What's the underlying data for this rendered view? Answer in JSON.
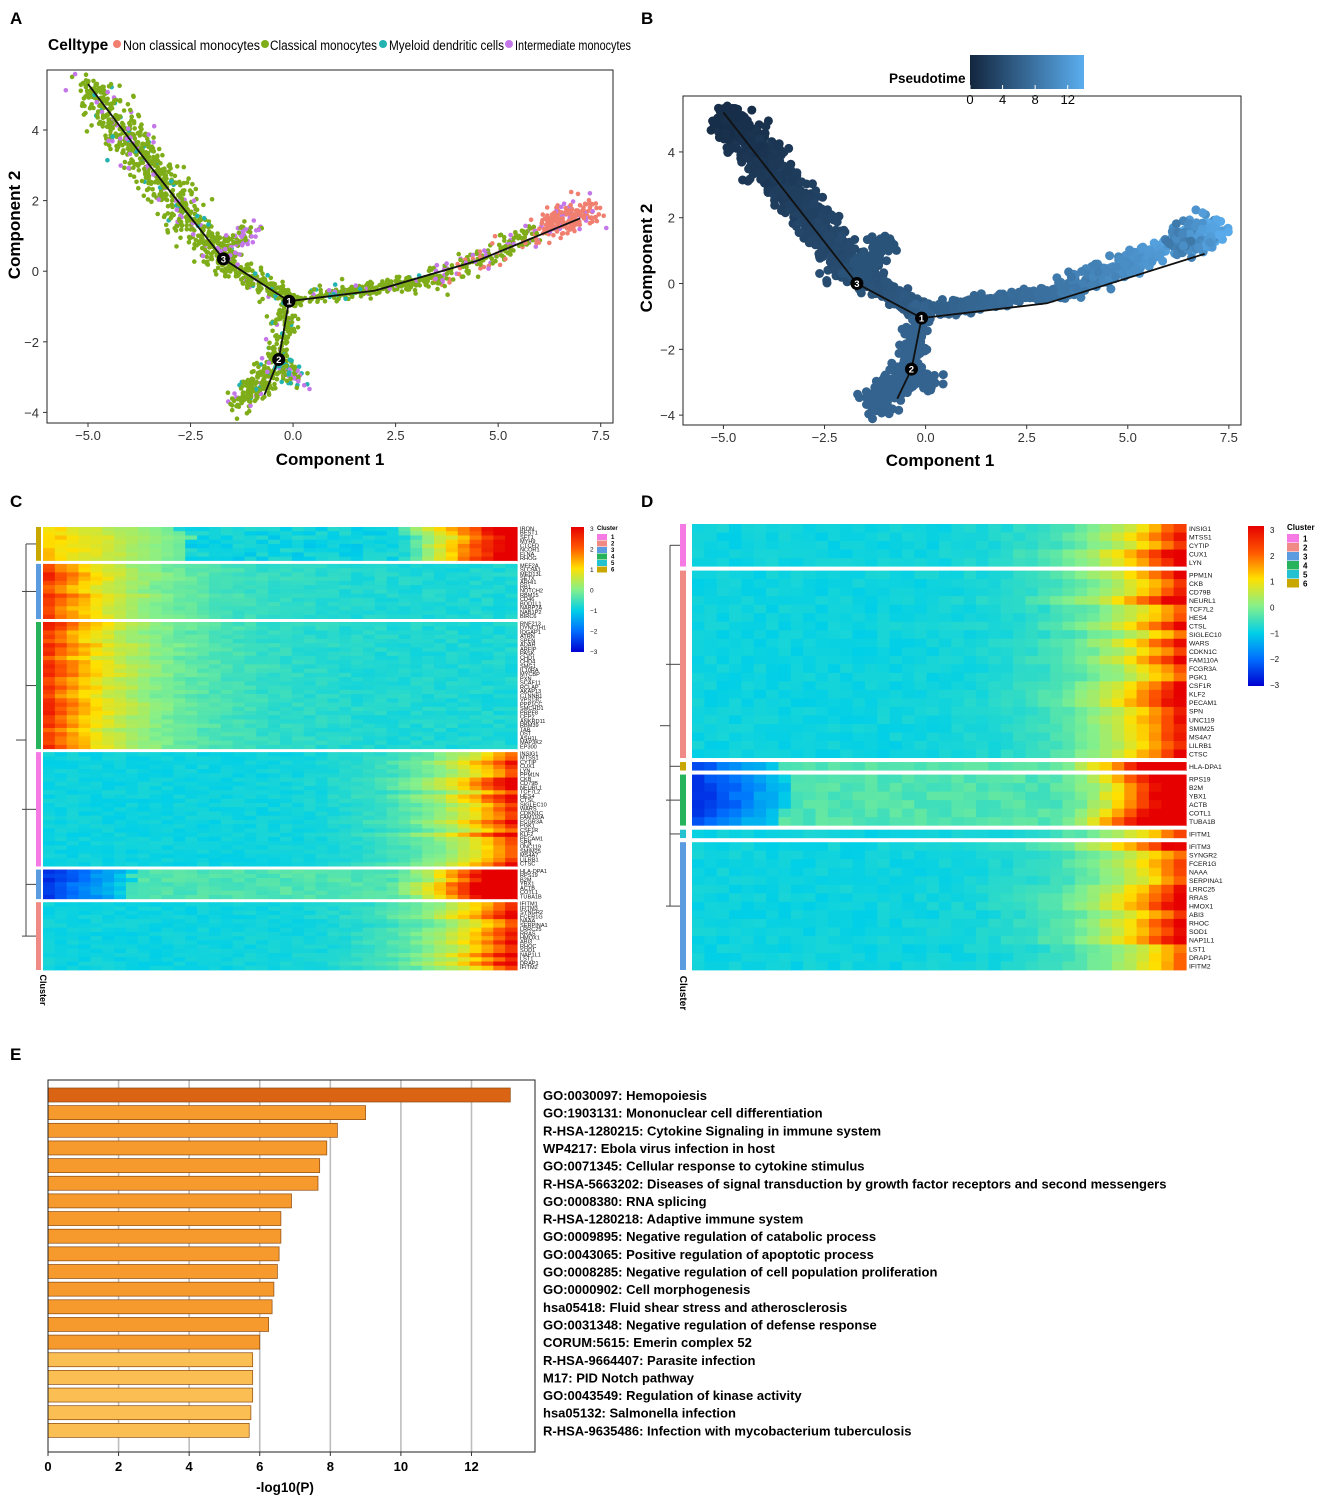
{
  "figure": {
    "panel_labels": [
      "A",
      "B",
      "C",
      "D",
      "E"
    ],
    "colors": {
      "non_classical": "#f07f6f",
      "classical": "#7fad19",
      "myeloid_dc": "#22b2b0",
      "intermediate": "#c377e8",
      "pseudo_low": "#13263f",
      "pseudo_high": "#5aadee",
      "bar_top": "#db6414",
      "bar_mid": "#f79a2d",
      "bar_low": "#fbbe52"
    }
  },
  "chart_data": [
    {
      "panel": "A",
      "type": "scatter",
      "title": "",
      "legend_title": "Celltype",
      "legend_position": "top",
      "legend": [
        "Non classical monocytes",
        "Classical monocytes",
        "Myeloid dendritic cells",
        "Intermediate monocytes"
      ],
      "xlabel": "Component 1",
      "ylabel": "Component 2",
      "xlim": [
        -6,
        7.8
      ],
      "ylim": [
        -4.3,
        5.7
      ],
      "xticks": [
        -5.0,
        -2.5,
        0.0,
        2.5,
        5.0,
        7.5
      ],
      "xtick_labels": [
        "−5.0",
        "−2.5",
        "0.0",
        "2.5",
        "5.0",
        "7.5"
      ],
      "yticks": [
        -4,
        -2,
        0,
        2,
        4
      ],
      "ytick_labels": [
        "−4",
        "−2",
        "0",
        "2",
        "4"
      ],
      "branch_points": [
        {
          "label": "1",
          "x": -0.1,
          "y": -0.85
        },
        {
          "label": "2",
          "x": -0.35,
          "y": -2.5
        },
        {
          "label": "3",
          "x": -1.7,
          "y": 0.35
        }
      ],
      "trajectory": [
        [
          -5.0,
          5.3
        ],
        [
          -3.5,
          3.0
        ],
        [
          -1.7,
          0.35
        ],
        [
          -0.1,
          -0.85
        ],
        [
          2.0,
          -0.55
        ],
        [
          4.5,
          0.3
        ],
        [
          7.0,
          1.5
        ]
      ],
      "trajectory_branch": [
        [
          -0.1,
          -0.85
        ],
        [
          -0.35,
          -2.5
        ],
        [
          -0.7,
          -3.5
        ]
      ]
    },
    {
      "panel": "B",
      "type": "scatter",
      "title": "",
      "legend_title": "Pseudotime",
      "legend_position": "top",
      "colorbar_ticks": [
        0,
        4,
        8,
        12
      ],
      "colorbar_range": [
        0,
        14
      ],
      "xlabel": "Component 1",
      "ylabel": "Component 2",
      "xlim": [
        -6,
        7.8
      ],
      "ylim": [
        -4.3,
        5.7
      ],
      "xticks": [
        -5.0,
        -2.5,
        0.0,
        2.5,
        5.0,
        7.5
      ],
      "xtick_labels": [
        "−5.0",
        "−2.5",
        "0.0",
        "2.5",
        "5.0",
        "7.5"
      ],
      "yticks": [
        -4,
        -2,
        0,
        2,
        4
      ],
      "ytick_labels": [
        "−4",
        "−2",
        "0",
        "2",
        "4"
      ],
      "branch_points": [
        {
          "label": "1",
          "x": -0.1,
          "y": -1.05
        },
        {
          "label": "2",
          "x": -0.35,
          "y": -2.6
        },
        {
          "label": "3",
          "x": -1.7,
          "y": 0.0
        }
      ]
    },
    {
      "panel": "C",
      "type": "heatmap",
      "legend_title": "Cluster",
      "colorbar_ticks": [
        3,
        2,
        1,
        0,
        -1,
        -2,
        -3
      ],
      "colorbar_labels": [
        "3",
        "2",
        "1",
        "0",
        "−1",
        "−2",
        "−3"
      ],
      "cluster_legend": [
        "1",
        "2",
        "3",
        "4",
        "5",
        "6"
      ],
      "axis_label": "Cluster",
      "cluster_colors": [
        "#f57ae3",
        "#f08a84",
        "#5b9be0",
        "#26b35c",
        "#24c2d0",
        "#c8a800"
      ],
      "blocks": [
        {
          "cluster": 6,
          "pattern": "mixed",
          "genes": [
            "IRON",
            "BEST1",
            "SFT1",
            "MYH9",
            "CTCFD",
            "NCOR1",
            "FLNA",
            "RHOG"
          ]
        },
        {
          "cluster": 3,
          "pattern": "early",
          "genes": [
            "MEF2A",
            "SLC9A1",
            "MED13L",
            "SETX",
            "ARHI1",
            "RB1",
            "NOTCH2",
            "RBM15",
            "CD46",
            "BOD1L1",
            "NABP2A",
            "NAB1P2",
            "BIRC6"
          ]
        },
        {
          "cluster": 4,
          "pattern": "early",
          "genes": [
            "RNF213",
            "DYNC1H1",
            "IQGAP1",
            "ATRN",
            "SPEN",
            "ADAR",
            "ARFIP",
            "PASK",
            "CHD1",
            "CHD4",
            "SMG1",
            "IL10RA",
            "MYCBP",
            "PXN",
            "SCAF11",
            "RCLAP",
            "AKAP13",
            "CTNNB1",
            "VPS13C",
            "PPP1CC",
            "SMCHD1",
            "PRPF8",
            "CEP2",
            "ANKRD11",
            "RBM39",
            "TAB",
            "DST",
            "ASH1L",
            "MAP3K2",
            "EP300"
          ]
        },
        {
          "cluster": 1,
          "pattern": "late",
          "genes": [
            "INSIG1",
            "MTSS1",
            "CYTIP",
            "CUX1",
            "LYN",
            "PPM1N",
            "CKB",
            "CD79B",
            "NEURL1",
            "TCF7L2",
            "HES4",
            "CTSL",
            "SIGLEC10",
            "WARS",
            "CDKN1C",
            "FAM110A",
            "FCGR3A",
            "PGK1",
            "CSF1R",
            "KLF2",
            "PECAM1",
            "SPN",
            "UNC119",
            "SMIM25",
            "MS4A7",
            "LILRB1",
            "CTSC"
          ]
        },
        {
          "cluster": 3,
          "pattern": "dip",
          "genes": [
            "HLA-DPA1",
            "RPS19",
            "B2M",
            "YBX1",
            "ACTB",
            "COTL1",
            "TUBA1B"
          ]
        },
        {
          "cluster": 2,
          "pattern": "late",
          "genes": [
            "IFITM1",
            "IFITM3",
            "SYNGR2",
            "FCER1G",
            "NAAA",
            "SERPINA1",
            "LRRC25",
            "RRAS",
            "HMOX1",
            "ABI3",
            "RHOC",
            "SOD1",
            "NAP1L1",
            "LST1",
            "DRAP1",
            "IFITM2"
          ]
        }
      ]
    },
    {
      "panel": "D",
      "type": "heatmap",
      "legend_title": "Cluster",
      "colorbar_ticks": [
        3,
        2,
        1,
        0,
        -1,
        -2,
        -3
      ],
      "colorbar_labels": [
        "3",
        "2",
        "1",
        "0",
        "−1",
        "−2",
        "−3"
      ],
      "cluster_legend": [
        "1",
        "2",
        "3",
        "4",
        "5",
        "6"
      ],
      "axis_label": "Cluster",
      "cluster_colors": [
        "#f57ae3",
        "#f08a84",
        "#5b9be0",
        "#26b35c",
        "#24c2d0",
        "#c8a800"
      ],
      "blocks": [
        {
          "cluster": 1,
          "pattern": "late",
          "genes": [
            "INSIG1",
            "MTSS1",
            "CYTIP",
            "CUX1",
            "LYN"
          ]
        },
        {
          "cluster": 2,
          "pattern": "late",
          "genes": [
            "PPM1N",
            "CKB",
            "CD79B",
            "NEURL1",
            "TCF7L2",
            "HES4",
            "CTSL",
            "SIGLEC10",
            "WARS",
            "CDKN1C",
            "FAM110A",
            "FCGR3A",
            "PGK1",
            "CSF1R",
            "KLF2",
            "PECAM1",
            "SPN",
            "UNC119",
            "SMIM25",
            "MS4A7",
            "LILRB1",
            "CTSC"
          ]
        },
        {
          "cluster": 6,
          "pattern": "dip",
          "genes": [
            "HLA-DPA1"
          ]
        },
        {
          "cluster": 4,
          "pattern": "dip",
          "genes": [
            "RPS19",
            "B2M",
            "YBX1",
            "ACTB",
            "COTL1",
            "TUBA1B"
          ]
        },
        {
          "cluster": 5,
          "pattern": "late",
          "genes": [
            "IFITM1"
          ]
        },
        {
          "cluster": 3,
          "pattern": "late",
          "genes": [
            "IFITM3",
            "SYNGR2",
            "FCER1G",
            "NAAA",
            "SERPINA1",
            "LRRC25",
            "RRAS",
            "HMOX1",
            "ABI3",
            "RHOC",
            "SOD1",
            "NAP1L1",
            "LST1",
            "DRAP1",
            "IFITM2"
          ]
        }
      ]
    },
    {
      "panel": "E",
      "type": "bar",
      "orientation": "horizontal",
      "xlabel": "-log10(P)",
      "xlim": [
        0,
        13.8
      ],
      "xticks": [
        0,
        2,
        4,
        6,
        8,
        10,
        12
      ],
      "grid": true,
      "categories": [
        "GO:0030097: Hemopoiesis",
        "GO:1903131: Mononuclear cell differentiation",
        "R-HSA-1280215: Cytokine Signaling in immune system",
        "WP4217: Ebola virus infection in host",
        "GO:0071345: Cellular response to cytokine stimulus",
        "R-HSA-5663202: Diseases of signal transduction by growth factor receptors and second messengers",
        "GO:0008380: RNA splicing",
        "R-HSA-1280218: Adaptive immune system",
        "GO:0009895: Negative regulation of catabolic process",
        "GO:0043065: Positive regulation of apoptotic process",
        "GO:0008285: Negative regulation of cell population proliferation",
        "GO:0000902: Cell morphogenesis",
        "hsa05418: Fluid shear stress and atherosclerosis",
        "GO:0031348: Negative regulation of defense response",
        "CORUM:5615: Emerin complex 52",
        "R-HSA-9664407: Parasite infection",
        "M17: PID Notch pathway",
        "GO:0043549: Regulation of kinase activity",
        "hsa05132: Salmonella infection",
        "R-HSA-9635486: Infection with mycobacterium tuberculosis"
      ],
      "values": [
        13.1,
        9.0,
        8.2,
        7.9,
        7.7,
        7.65,
        6.9,
        6.6,
        6.6,
        6.55,
        6.5,
        6.4,
        6.35,
        6.25,
        6.0,
        5.8,
        5.8,
        5.8,
        5.75,
        5.7
      ]
    }
  ]
}
